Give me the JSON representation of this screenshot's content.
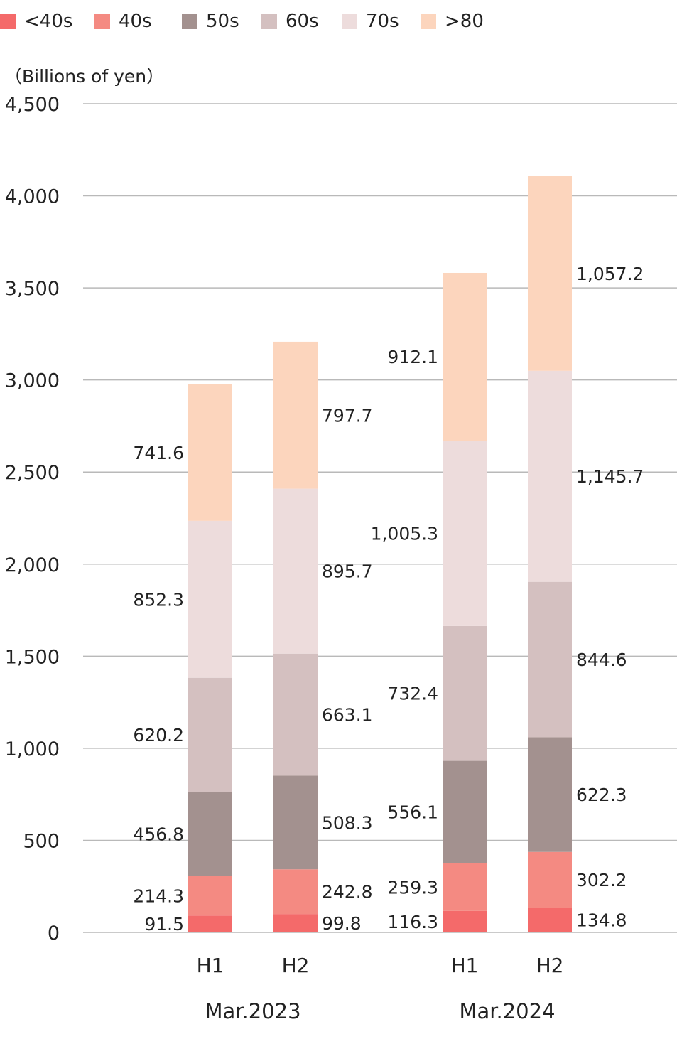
{
  "chart_data": {
    "type": "bar",
    "stacked": true,
    "unit_label": "（Billions of yen）",
    "ylim": [
      0,
      4500
    ],
    "yticks": [
      0,
      500,
      1000,
      1500,
      2000,
      2500,
      3000,
      3500,
      4000,
      4500
    ],
    "ytick_labels": [
      "0",
      "500",
      "1,000",
      "1,500",
      "2,000",
      "2,500",
      "3,000",
      "3,500",
      "4,000",
      "4,500"
    ],
    "grid": true,
    "legend_position": "top",
    "categories": [
      "H1",
      "H2",
      "H1",
      "H2"
    ],
    "groups": [
      {
        "label": "Mar.2023",
        "categories": [
          "H1",
          "H2"
        ]
      },
      {
        "label": "Mar.2024",
        "categories": [
          "H1",
          "H2"
        ]
      }
    ],
    "series": [
      {
        "name": "<40s",
        "color": "#f46a6a",
        "values": [
          91.5,
          99.8,
          116.3,
          134.8
        ],
        "labels": [
          "91.5",
          "99.8",
          "116.3",
          "134.8"
        ]
      },
      {
        "name": "40s",
        "color": "#f48a82",
        "values": [
          214.3,
          242.8,
          259.3,
          302.2
        ],
        "labels": [
          "214.3",
          "242.8",
          "259.3",
          "302.2"
        ]
      },
      {
        "name": "50s",
        "color": "#a3918f",
        "values": [
          456.8,
          508.3,
          556.1,
          622.3
        ],
        "labels": [
          "456.8",
          "508.3",
          "556.1",
          "622.3"
        ]
      },
      {
        "name": "60s",
        "color": "#d4c0c0",
        "values": [
          620.2,
          663.1,
          732.4,
          844.6
        ],
        "labels": [
          "620.2",
          "663.1",
          "732.4",
          "844.6"
        ]
      },
      {
        "name": "70s",
        "color": "#eddcdc",
        "values": [
          852.3,
          895.7,
          1005.3,
          1145.7
        ],
        "labels": [
          "852.3",
          "895.7",
          "1,005.3",
          "1,145.7"
        ]
      },
      {
        "name": ">80",
        "color": "#fcd5bd",
        "values": [
          741.6,
          797.7,
          912.1,
          1057.2
        ],
        "labels": [
          "741.6",
          "797.7",
          "912.1",
          "1,057.2"
        ]
      }
    ]
  }
}
